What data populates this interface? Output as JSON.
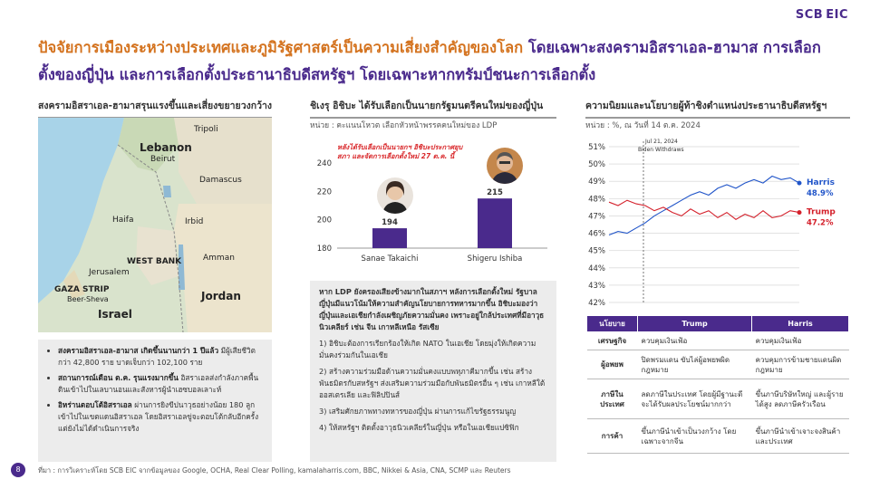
{
  "logo": "SCB EIC",
  "title": {
    "part1": "ปัจจัยการเมืองระหว่างประเทศและภูมิรัฐศาสตร์เป็นความเสี่ยงสำคัญของโลก",
    "part2": " โดยเฉพาะสงครามอิสราเอล-ฮามาส การเลือกตั้งของญี่ปุ่น และการเลือกตั้งประธานาธิบดีสหรัฐฯ โดยเฉพาะหากทรัมป์ชนะการเลือกตั้ง"
  },
  "section1": {
    "heading": "สงครามอิสราเอล-ฮามาสรุนแรงขึ้นและเสี่ยงขยายวงกว้าง",
    "map_labels": [
      "Tripoli",
      "Lebanon",
      "Beirut",
      "Damascus",
      "Haifa",
      "Irbid",
      "WEST BANK",
      "Amman",
      "Jerusalem",
      "GAZA STRIP",
      "Beer-Sheva",
      "Jordan",
      "Israel"
    ],
    "bullets": [
      {
        "bold": "สงครามอิสราเอล-ฮามาส เกิดขึ้นนานกว่า 1 ปีแล้ว",
        "text": " มีผู้เสียชีวิตกว่า 42,800 ราย บาดเจ็บกว่า 102,100 ราย"
      },
      {
        "bold": "สถานการณ์เดือน ต.ค. รุนแรงมากขึ้น",
        "text": " อิสราเอลส่งกำลังภาคพื้นดินเข้าไปในเลบานอนและสังหารผู้นำเฮซบอลเลาะห์"
      },
      {
        "bold": "อิหร่านตอบโต้อิสราเอล",
        "text": " ผ่านการยิงขีปนาวุธอย่างน้อย 180 ลูกเข้าไปในเขตแดนอิสราเอล โดยอิสราเอลขู่จะตอบโต้กลับอีกครั้ง แต่ยังไม่ได้ดำเนินการจริง"
      }
    ]
  },
  "section2": {
    "heading": "ชิเงรุ อิชิบะ ได้รับเลือกเป็นนายกรัฐมนตรีคนใหม่ของญี่ปุ่น",
    "unit": "หน่วย : คะแนนโหวต เลือกหัวหน้าพรรคคนใหม่ของ LDP",
    "note": "หลังได้รับเลือกเป็นนายกฯ อิชิบะประกาศยุบสภา และจัดการเลือกตั้งใหม่ 27 ต.ค. นี้",
    "paragraphs": [
      "หาก LDP ยังครองเสียงข้างมากในสภาฯ หลังการเลือกตั้งใหม่ รัฐบาลญี่ปุ่นมีแนวโน้มให้ความสำคัญนโยบายการทหารมากขึ้น อิชิบะมองว่าญี่ปุ่นและเอเชียกำลังเผชิญภัยความมั่นคง เพราะอยู่ใกล้ประเทศที่มีอาวุธนิวเคลียร์ เช่น จีน เกาหลีเหนือ รัสเซีย",
      "1) อิชิบะต้องการเรียกร้องให้เกิด NATO ในเอเชีย โดยมุ่งให้เกิดความมั่นคงร่วมกันในเอเชีย",
      "2) สร้างความร่วมมือด้านความมั่นคงแบบพหุภาคีมากขึ้น เช่น สร้างพันธมิตรกับสหรัฐฯ ส่งเสริมความร่วมมือกับพันธมิตรอื่น ๆ เช่น เกาหลีใต้ ออสเตรเลีย และฟิลิปปินส์",
      "3) เสริมศักยภาพทางทหารของญี่ปุ่น ผ่านการแก้ไขรัฐธรรมนูญ",
      "4) ให้สหรัฐฯ ติดตั้งอาวุธนิวเคลียร์ในญี่ปุ่น หรือในเอเชียแปซิฟิก"
    ]
  },
  "section3": {
    "heading": "ความนิยมและนโยบายผู้ท้าชิงตำแหน่งประธานาธิบดีสหรัฐฯ",
    "unit": "หน่วย : %, ณ วันที่ 14 ต.ค. 2024",
    "annotation_date": "Jul 21, 2024",
    "annotation_text": "Biden Withdraws",
    "harris_label": "Harris",
    "harris_value": "48.9%",
    "trump_label": "Trump",
    "trump_value": "47.2%",
    "table": {
      "headers": [
        "นโยบาย",
        "Trump",
        "Harris"
      ],
      "rows": [
        [
          "เศรษฐกิจ",
          "ควบคุมเงินเฟ้อ",
          "ควบคุมเงินเฟ้อ"
        ],
        [
          "ผู้อพยพ",
          "ปิดพรมแดน ขับไล่ผู้อพยพผิดกฎหมาย",
          "ควบคุมการข้ามชายแดนผิดกฎหมาย"
        ],
        [
          "ภาษีใน ประเทศ",
          "ลดภาษีในประเทศ โดยผู้มีฐานะดีจะได้รับผลประโยชน์มากกว่า",
          "ขึ้นภาษีบริษัทใหญ่ และผู้รายได้สูง ลดภาษีครัวเรือน"
        ],
        [
          "การค้า",
          "ขึ้นภาษีนำเข้าเป็นวงกว้าง โดยเฉพาะจากจีน",
          "ขึ้นภาษีนำเข้าเจาะจงสินค้าและประเทศ"
        ]
      ]
    }
  },
  "chart_data": [
    {
      "type": "bar",
      "categories": [
        "Sanae Takaichi",
        "Shigeru Ishiba"
      ],
      "values": [
        194,
        215
      ],
      "ylim": [
        180,
        240
      ],
      "yticks": [
        180,
        200,
        220,
        240
      ],
      "colors": [
        "#4a2a8c"
      ]
    },
    {
      "type": "line",
      "ylim": [
        42,
        51
      ],
      "yticks": [
        51,
        50,
        49,
        48,
        47,
        46,
        45,
        44,
        43,
        42
      ],
      "y_tick_suffix": "%",
      "series": [
        {
          "name": "Harris",
          "color": "#2155c9",
          "values": [
            45.9,
            46.1,
            46.0,
            46.3,
            46.6,
            47.0,
            47.3,
            47.6,
            47.9,
            48.2,
            48.4,
            48.2,
            48.6,
            48.8,
            48.6,
            48.9,
            49.1,
            48.9,
            49.3,
            49.1,
            49.2,
            48.9
          ]
        },
        {
          "name": "Trump",
          "color": "#d4202b",
          "values": [
            47.8,
            47.6,
            47.9,
            47.7,
            47.6,
            47.3,
            47.5,
            47.2,
            47.0,
            47.4,
            47.1,
            47.3,
            46.9,
            47.2,
            46.8,
            47.1,
            46.9,
            47.3,
            46.9,
            47.0,
            47.3,
            47.2
          ]
        }
      ]
    }
  ],
  "page_number": "8",
  "source": "ที่มา : การวิเคราะห์โดย SCB EIC จากข้อมูลของ Google, OCHA, Real Clear Polling, kamalaharris.com, BBC, Nikkei & Asia, CNA, SCMP และ Reuters"
}
